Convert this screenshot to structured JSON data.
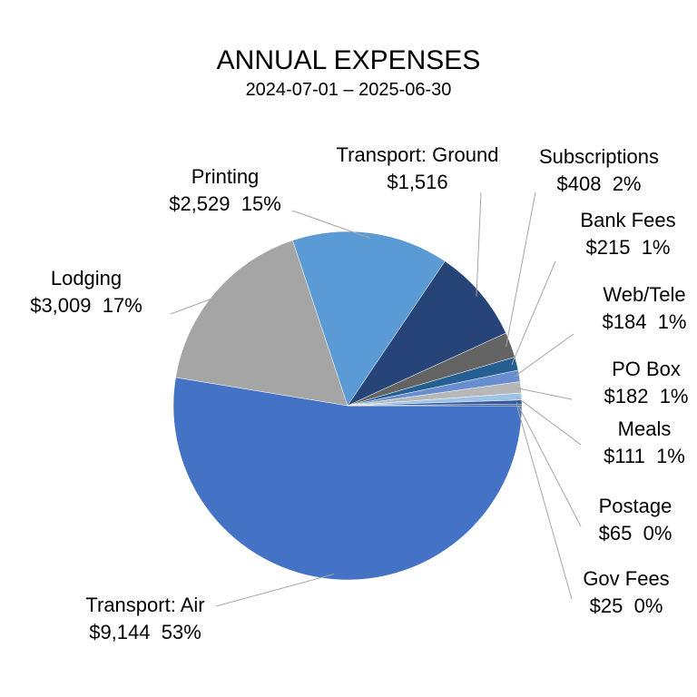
{
  "chart_data": {
    "type": "pie",
    "title": "ANNUAL EXPENSES",
    "subtitle": "2024-07-01 – 2025-06-30",
    "categories": [
      "Transport: Air",
      "Lodging",
      "Printing",
      "Transport: Ground",
      "Subscriptions",
      "Bank Fees",
      "Web/Tele",
      "PO Box",
      "Meals",
      "Postage",
      "Gov Fees"
    ],
    "values": [
      9144,
      3009,
      2529,
      1516,
      408,
      215,
      184,
      182,
      111,
      65,
      25
    ],
    "value_labels": [
      "$9,144",
      "$3,009",
      "$2,529",
      "$1,516",
      "$408",
      "$215",
      "$184",
      "$182",
      "$111",
      "$65",
      "$25"
    ],
    "percents": [
      53,
      17,
      15,
      null,
      2,
      1,
      1,
      1,
      1,
      0,
      0
    ],
    "percent_labels": [
      "53%",
      "17%",
      "15%",
      null,
      "2%",
      "1%",
      "1%",
      "1%",
      "1%",
      "0%",
      "0%"
    ],
    "colors": [
      "#4472c4",
      "#a5a5a5",
      "#5b9bd5",
      "#264478",
      "#636363",
      "#255e91",
      "#698ed0",
      "#b7b7b7",
      "#9dc3e6",
      "#335aa1",
      "#1f3864"
    ]
  }
}
